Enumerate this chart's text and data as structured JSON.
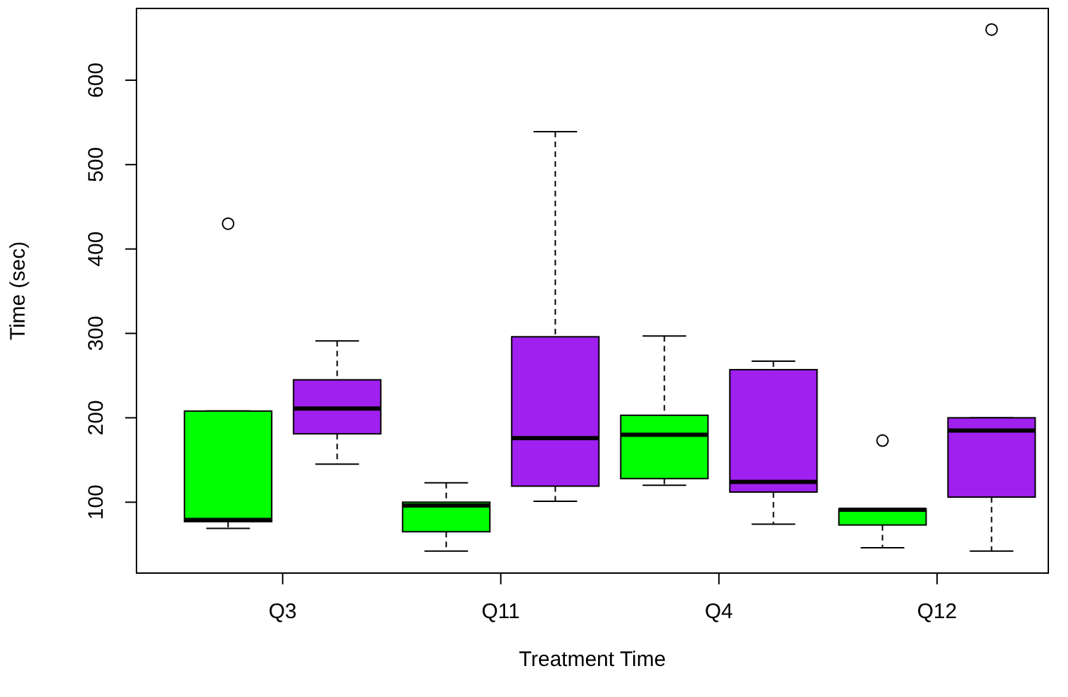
{
  "chart_data": {
    "type": "box",
    "xlabel": "Treatment Time",
    "ylabel": "Time (sec)",
    "categories": [
      "Q3",
      "Q11",
      "Q4",
      "Q12"
    ],
    "ylim": [
      16,
      685
    ],
    "yticks": [
      100,
      200,
      300,
      400,
      500,
      600
    ],
    "grid": false,
    "legend": false,
    "series": [
      {
        "color": "#00ff00",
        "boxes": [
          {
            "low": 69,
            "q1": 77,
            "median": 79,
            "q3": 208,
            "high": 208,
            "outliers": [
              430
            ]
          },
          {
            "low": 42,
            "q1": 65,
            "median": 96,
            "q3": 100,
            "high": 123
          },
          {
            "low": 120,
            "q1": 128,
            "median": 180,
            "q3": 203,
            "high": 297
          },
          {
            "low": 46,
            "q1": 73,
            "median": 91,
            "q3": 92,
            "high": 92,
            "outliers": [
              173
            ]
          }
        ]
      },
      {
        "color": "#a020f0",
        "boxes": [
          {
            "low": 145,
            "q1": 181,
            "median": 211,
            "q3": 245,
            "high": 291
          },
          {
            "low": 101,
            "q1": 119,
            "median": 176,
            "q3": 296,
            "high": 539
          },
          {
            "low": 74,
            "q1": 112,
            "median": 124,
            "q3": 257,
            "high": 267
          },
          {
            "low": 42,
            "q1": 106,
            "median": 185,
            "q3": 200,
            "high": 200,
            "outliers": [
              660
            ]
          }
        ]
      }
    ]
  }
}
